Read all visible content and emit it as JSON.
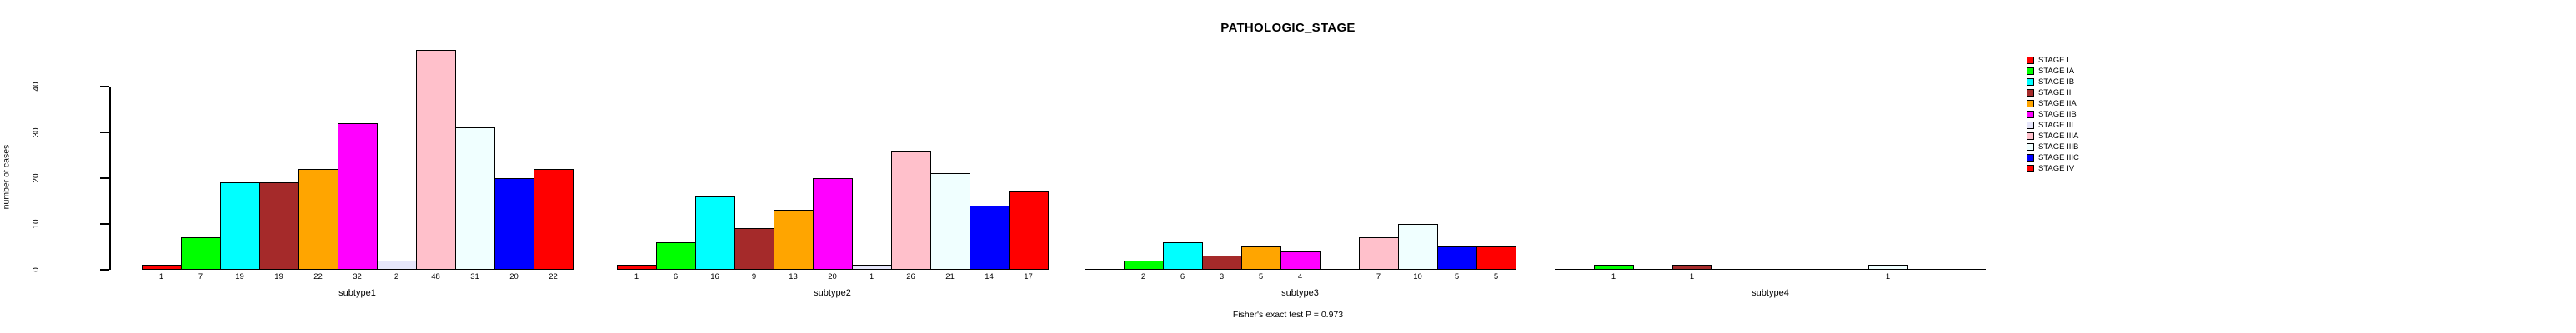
{
  "title": "PATHOLOGIC_STAGE",
  "chart_data": {
    "type": "bar",
    "title": "PATHOLOGIC_STAGE",
    "ylabel": "number of cases",
    "ylim": [
      0,
      48
    ],
    "y_ticks": [
      0,
      10,
      20,
      30,
      40
    ],
    "grid": false,
    "legend_position": "right",
    "categories": [
      "STAGE I",
      "STAGE IA",
      "STAGE IB",
      "STAGE II",
      "STAGE IIA",
      "STAGE IIB",
      "STAGE III",
      "STAGE IIIA",
      "STAGE IIIB",
      "STAGE IIIC",
      "STAGE IV"
    ],
    "stage_colors": [
      "#FF0000",
      "#00FF00",
      "#00FFFF",
      "#A52A2A",
      "#FFA500",
      "#FF00FF",
      "#E6E6FA",
      "#FFC0CB",
      "#F0FFFF",
      "#0000FF",
      "#FF0000"
    ],
    "panels": [
      {
        "xlabel": "subtype1",
        "values": [
          1,
          7,
          19,
          19,
          22,
          32,
          2,
          48,
          31,
          20,
          22
        ]
      },
      {
        "xlabel": "subtype2",
        "values": [
          1,
          6,
          16,
          9,
          13,
          20,
          1,
          26,
          21,
          14,
          17
        ]
      },
      {
        "xlabel": "subtype3",
        "values": [
          0,
          2,
          6,
          3,
          5,
          4,
          0,
          7,
          10,
          5,
          5
        ]
      },
      {
        "xlabel": "subtype4",
        "values": [
          0,
          1,
          0,
          1,
          0,
          0,
          0,
          0,
          1,
          0,
          0
        ]
      }
    ],
    "annotation": "Fisher's exact test P = 0.973",
    "legend_entries": [
      {
        "label": "STAGE I",
        "color": "#FF0000"
      },
      {
        "label": "STAGE IA",
        "color": "#00FF00"
      },
      {
        "label": "STAGE IB",
        "color": "#00FFFF"
      },
      {
        "label": "STAGE II",
        "color": "#A52A2A"
      },
      {
        "label": "STAGE IIA",
        "color": "#FFA500"
      },
      {
        "label": "STAGE IIB",
        "color": "#FF00FF"
      },
      {
        "label": "STAGE III",
        "color": "#E6E6FA"
      },
      {
        "label": "STAGE IIIA",
        "color": "#FFC0CB"
      },
      {
        "label": "STAGE IIIB",
        "color": "#F0FFFF"
      },
      {
        "label": "STAGE IIIC",
        "color": "#0000FF"
      },
      {
        "label": "STAGE IV",
        "color": "#FF0000"
      }
    ]
  }
}
